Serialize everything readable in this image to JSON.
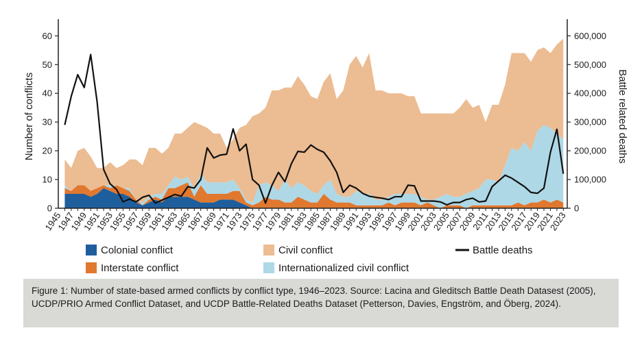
{
  "chart_data": {
    "type": "area",
    "x": [
      1946,
      1947,
      1948,
      1949,
      1950,
      1951,
      1952,
      1953,
      1954,
      1955,
      1956,
      1957,
      1958,
      1959,
      1960,
      1961,
      1962,
      1963,
      1964,
      1965,
      1966,
      1967,
      1968,
      1969,
      1970,
      1971,
      1972,
      1973,
      1974,
      1975,
      1976,
      1977,
      1978,
      1979,
      1980,
      1981,
      1982,
      1983,
      1984,
      1985,
      1986,
      1987,
      1988,
      1989,
      1990,
      1991,
      1992,
      1993,
      1994,
      1995,
      1996,
      1997,
      1998,
      1999,
      2000,
      2001,
      2002,
      2003,
      2004,
      2005,
      2006,
      2007,
      2008,
      2009,
      2010,
      2011,
      2012,
      2013,
      2014,
      2015,
      2016,
      2017,
      2018,
      2019,
      2020,
      2021,
      2022,
      2023
    ],
    "x_tick_labels": [
      "1945",
      "1947",
      "1949",
      "1951",
      "1953",
      "1955",
      "1957",
      "1959",
      "1961",
      "1963",
      "1965",
      "1967",
      "1969",
      "1971",
      "1973",
      "1975",
      "1977",
      "1979",
      "1981",
      "1983",
      "1985",
      "1987",
      "1989",
      "1991",
      "1993",
      "1995",
      "1997",
      "1999",
      "2001",
      "2003",
      "2005",
      "2007",
      "2009",
      "2011",
      "2013",
      "2015",
      "2017",
      "2019",
      "2021",
      "2023"
    ],
    "x_tick_values": [
      1945,
      1947,
      1949,
      1951,
      1953,
      1955,
      1957,
      1959,
      1961,
      1963,
      1965,
      1967,
      1969,
      1971,
      1973,
      1975,
      1977,
      1979,
      1981,
      1983,
      1985,
      1987,
      1989,
      1991,
      1993,
      1995,
      1997,
      1999,
      2001,
      2003,
      2005,
      2007,
      2009,
      2011,
      2013,
      2015,
      2017,
      2019,
      2021,
      2023
    ],
    "stack_order": [
      "colonial",
      "interstate",
      "internationalized",
      "civil"
    ],
    "series": [
      {
        "key": "colonial",
        "name": "Colonial conflict",
        "color": "#1f5e9c",
        "values": [
          5,
          5,
          5,
          5,
          4,
          5,
          7,
          6,
          5,
          5,
          4,
          2,
          1,
          2,
          3,
          2,
          4,
          4,
          4,
          4,
          3,
          2,
          2,
          2,
          3,
          3,
          3,
          2,
          1,
          0,
          0,
          0,
          0,
          0,
          0,
          0,
          0,
          0,
          0,
          0,
          0,
          0,
          0,
          0,
          0,
          0,
          0,
          0,
          0,
          0,
          0,
          0,
          0,
          0,
          0,
          0,
          0,
          0,
          0,
          0,
          0,
          0,
          0,
          0,
          0,
          0,
          0,
          0,
          0,
          0,
          0,
          0,
          0,
          0,
          0,
          0,
          0,
          0
        ]
      },
      {
        "key": "interstate",
        "name": "Interstate conflict",
        "color": "#e0782f",
        "values": [
          2,
          1,
          3,
          3,
          2,
          2,
          1,
          1,
          3,
          2,
          2,
          1,
          0,
          1,
          1,
          1,
          3,
          3,
          4,
          5,
          1,
          6,
          3,
          3,
          2,
          2,
          3,
          4,
          1,
          1,
          2,
          4,
          3,
          3,
          2,
          2,
          4,
          3,
          2,
          2,
          5,
          3,
          2,
          2,
          2,
          1,
          1,
          1,
          1,
          1,
          2,
          1,
          2,
          2,
          2,
          1,
          2,
          1,
          0,
          1,
          1,
          1,
          0,
          1,
          1,
          1,
          1,
          1,
          1,
          1,
          2,
          1,
          2,
          2,
          3,
          2,
          3,
          2
        ]
      },
      {
        "key": "internationalized",
        "name": "Internationalized civil conflict",
        "color": "#aed8e6",
        "values": [
          1,
          0,
          0,
          0,
          0,
          0,
          0,
          1,
          0,
          0,
          1,
          0,
          1,
          1,
          1,
          2,
          1,
          4,
          2,
          2,
          3,
          4,
          4,
          4,
          4,
          4,
          4,
          1,
          1,
          1,
          6,
          5,
          5,
          3,
          8,
          5,
          5,
          5,
          4,
          3,
          3,
          7,
          3,
          2,
          2,
          5,
          4,
          4,
          2,
          2,
          2,
          4,
          3,
          3,
          3,
          3,
          1,
          2,
          4,
          4,
          3,
          3,
          5,
          5,
          6,
          9,
          9,
          8,
          14,
          20,
          18,
          22,
          18,
          25,
          26,
          26,
          23,
          22
        ]
      },
      {
        "key": "civil",
        "name": "Civil conflict",
        "color": "#ecbc92",
        "values": [
          9,
          8,
          12,
          13,
          12,
          7,
          6,
          8,
          6,
          8,
          10,
          14,
          13,
          17,
          16,
          14,
          13,
          15,
          16,
          17,
          23,
          17,
          19,
          17,
          17,
          12,
          14,
          21,
          26,
          30,
          25,
          26,
          33,
          35,
          32,
          35,
          37,
          35,
          33,
          33,
          36,
          37,
          33,
          37,
          46,
          47,
          44,
          49,
          38,
          38,
          36,
          35,
          35,
          34,
          34,
          29,
          30,
          30,
          29,
          28,
          29,
          31,
          33,
          29,
          29,
          20,
          26,
          27,
          28,
          33,
          34,
          31,
          31,
          28,
          27,
          26,
          31,
          35
        ]
      }
    ],
    "line_series": {
      "name": "Battle deaths",
      "color": "#111111",
      "values": [
        290000,
        390000,
        465000,
        420000,
        535000,
        370000,
        135000,
        85000,
        65000,
        22000,
        32000,
        22000,
        38000,
        45000,
        18000,
        28000,
        38000,
        48000,
        42000,
        75000,
        70000,
        100000,
        210000,
        175000,
        185000,
        188000,
        276000,
        200000,
        223000,
        100000,
        80000,
        18000,
        80000,
        125000,
        92000,
        155000,
        198000,
        195000,
        220000,
        205000,
        195000,
        165000,
        125000,
        55000,
        80000,
        70000,
        52000,
        42000,
        38000,
        35000,
        30000,
        40000,
        40000,
        80000,
        78000,
        25000,
        25000,
        25000,
        22000,
        12000,
        20000,
        20000,
        30000,
        35000,
        22000,
        25000,
        75000,
        95000,
        115000,
        105000,
        90000,
        75000,
        55000,
        52000,
        70000,
        195000,
        275000,
        120000
      ]
    },
    "ylabel": "Number of conflicts",
    "y2label": "Battle related deaths",
    "ylim": [
      0,
      62
    ],
    "y_ticks": [
      0,
      10,
      20,
      30,
      40,
      50,
      60
    ],
    "y2lim": [
      0,
      620000
    ],
    "y2_tick_labels": [
      "0",
      "100,000",
      "200,000",
      "300,000",
      "400,000",
      "500,000",
      "600,000"
    ],
    "y2_tick_values": [
      0,
      100000,
      200000,
      300000,
      400000,
      500000,
      600000
    ],
    "grid": false,
    "legend_position": "bottom"
  },
  "legend": [
    {
      "label": "Colonial conflict",
      "color": "#1f5e9c",
      "kind": "swatch"
    },
    {
      "label": "Civil conflict",
      "color": "#ecbc92",
      "kind": "swatch"
    },
    {
      "label": "Battle deaths",
      "color": "#111111",
      "kind": "line"
    },
    {
      "label": "Interstate conflict",
      "color": "#e0782f",
      "kind": "swatch"
    },
    {
      "label": "Internationalized civil conflict",
      "color": "#aed8e6",
      "kind": "swatch"
    }
  ],
  "caption": "Figure 1: Number of state-based armed conflicts by conflict type, 1946–2023. Source: Lacina and Gleditsch Battle Death Datasest (2005), UCDP/PRIO Armed Conflict Dataset, and UCDP Battle-Related Deaths Dataset (Petterson, Davies, Engström, and Öberg, 2024)."
}
